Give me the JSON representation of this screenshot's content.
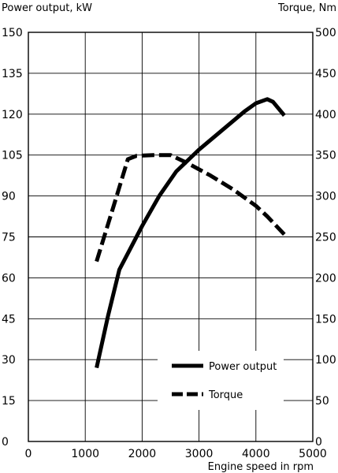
{
  "chart_data": {
    "type": "line",
    "title": "",
    "xlabel": "Engine speed in rpm",
    "ylabel_left": "Power output, kW",
    "ylabel_right": "Torque, Nm",
    "xlim": [
      0,
      5000
    ],
    "ylim_left": [
      0,
      150
    ],
    "ylim_right": [
      0,
      500
    ],
    "x_ticks": [
      0,
      1000,
      2000,
      3000,
      4000,
      5000
    ],
    "y_ticks_left": [
      0,
      15,
      30,
      45,
      60,
      75,
      90,
      105,
      120,
      135,
      150
    ],
    "y_ticks_right": [
      0,
      50,
      100,
      150,
      200,
      250,
      300,
      350,
      400,
      450,
      500
    ],
    "grid": true,
    "legend_position": "bottom-right",
    "series": [
      {
        "name": "Power output",
        "axis": "left",
        "style": "solid",
        "x": [
          1200,
          1400,
          1600,
          1800,
          2000,
          2300,
          2600,
          3000,
          3400,
          3800,
          4000,
          4200,
          4300,
          4500
        ],
        "y": [
          27,
          46,
          63,
          71,
          79,
          90,
          99,
          107,
          114,
          121,
          124,
          125.5,
          124.5,
          119.5
        ]
      },
      {
        "name": "Torque",
        "axis": "right",
        "style": "dashed",
        "x": [
          1200,
          1500,
          1750,
          1900,
          2200,
          2500,
          2800,
          3200,
          3600,
          4000,
          4200,
          4500
        ],
        "y": [
          220,
          288,
          345,
          349,
          350,
          350,
          340,
          325,
          308,
          288,
          275,
          253
        ]
      }
    ]
  }
}
